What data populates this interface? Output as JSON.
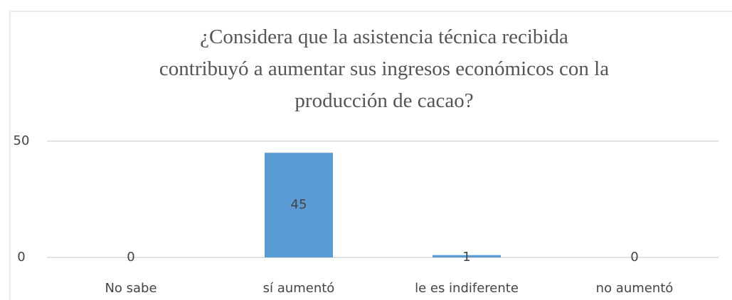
{
  "chart_data": {
    "type": "bar",
    "title": "¿Considera que la asistencia técnica recibida\ncontribuyó a aumentar sus ingresos económicos con la\nproducción de cacao?",
    "categories": [
      "No sabe",
      "sí aumentó",
      "le es indiferente",
      "no aumentó"
    ],
    "values": [
      0,
      45,
      1,
      0
    ],
    "color": "#5b9bd5",
    "ylim": [
      0,
      50
    ],
    "yticks": [
      0,
      50
    ],
    "grid": true
  }
}
